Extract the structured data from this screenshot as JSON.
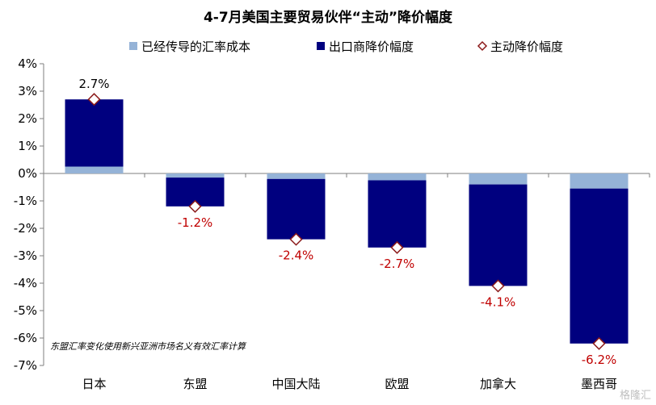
{
  "chart_data": {
    "type": "bar",
    "title": "4-7月美国主要贸易伙伴“主动”降价幅度",
    "categories": [
      "日本",
      "东盟",
      "中国大陆",
      "欧盟",
      "加拿大",
      "墨西哥"
    ],
    "series": [
      {
        "name": "已经传导的汇率成本",
        "values": [
          0.25,
          -0.15,
          -0.2,
          -0.25,
          -0.4,
          -0.55
        ],
        "color": "#95b3d7"
      },
      {
        "name": "出口商降价幅度",
        "values": [
          2.45,
          -1.05,
          -2.2,
          -2.45,
          -3.7,
          -5.65
        ],
        "color": "#00007f"
      },
      {
        "name": "主动降价幅度",
        "values": [
          2.7,
          -1.2,
          -2.4,
          -2.7,
          -4.1,
          -6.2
        ],
        "color": "#8b1a1a",
        "marker": "diamond"
      }
    ],
    "data_labels": [
      "2.7%",
      "-1.2%",
      "-2.4%",
      "-2.7%",
      "-4.1%",
      "-6.2%"
    ],
    "y_ticks": [
      "4%",
      "3%",
      "2%",
      "1%",
      "0%",
      "-1%",
      "-2%",
      "-3%",
      "-4%",
      "-5%",
      "-6%",
      "-7%"
    ],
    "ylim": [
      -7,
      4
    ],
    "legend_position": "top",
    "grid": false,
    "annotation": "东盟汇率变化使用新兴亚洲市场名义有效汇率计算"
  },
  "watermark": "格隆汇"
}
